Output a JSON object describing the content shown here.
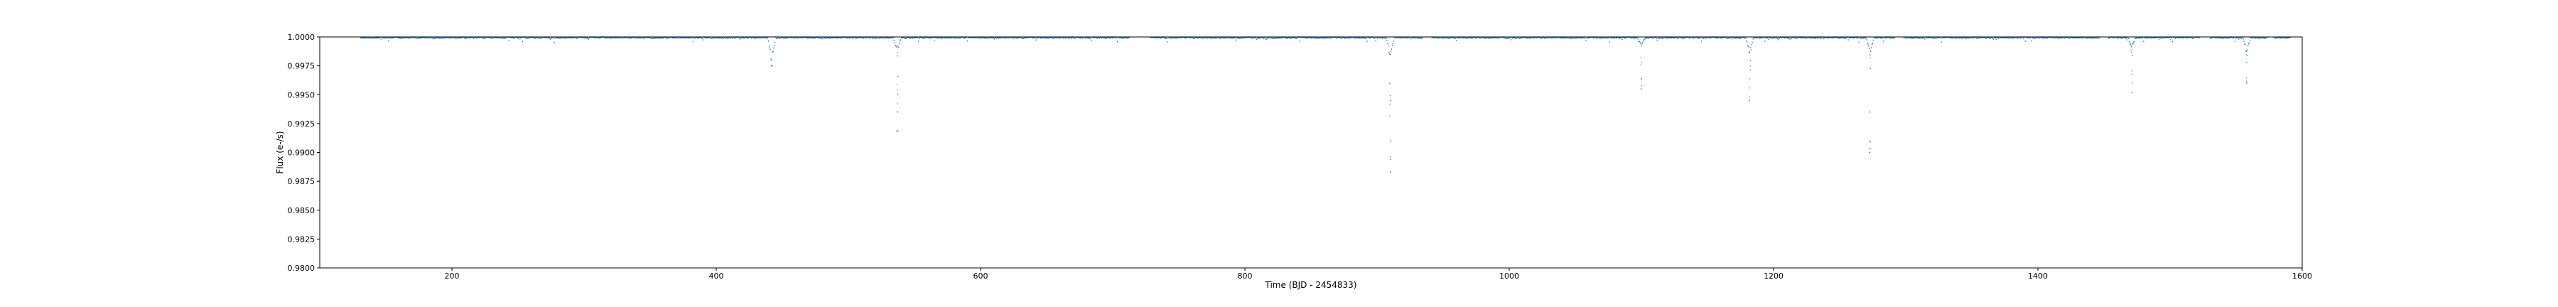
{
  "chart_data": {
    "type": "scatter",
    "title": "",
    "xlabel": "Time (BJD - 2454833)",
    "ylabel": "Flux (e-/s)",
    "xlim": [
      100,
      1600
    ],
    "ylim": [
      0.98,
      1.0
    ],
    "xticks": [
      "200",
      "400",
      "600",
      "800",
      "1000",
      "1200",
      "1400",
      "1600"
    ],
    "yticks": [
      "0.9800",
      "0.9825",
      "0.9850",
      "0.9875",
      "0.9900",
      "0.9925",
      "0.9950",
      "0.9975",
      "1.0000"
    ],
    "grid": false,
    "legend": "none",
    "series_color": "#1f77b4",
    "observation_range": [
      131,
      1591
    ],
    "data_gaps": [
      [
        713,
        728
      ],
      [
        935,
        941
      ],
      [
        1292,
        1298
      ],
      [
        1447,
        1453
      ],
      [
        1523,
        1530
      ],
      [
        1574,
        1578
      ]
    ],
    "dips": [
      {
        "x": 442,
        "depth_min": 0.9975,
        "deep_points": [
          0.9975
        ]
      },
      {
        "x": 537,
        "depth_min": 0.9985,
        "deep_points": [
          0.995,
          0.9935,
          0.9918
        ]
      },
      {
        "x": 910,
        "depth_min": 0.998,
        "deep_points": [
          0.9945,
          0.991,
          0.9883
        ]
      },
      {
        "x": 1100,
        "depth_min": 0.999,
        "deep_points": [
          0.9955
        ]
      },
      {
        "x": 1182,
        "depth_min": 0.9985,
        "deep_points": [
          0.9945
        ]
      },
      {
        "x": 1273,
        "depth_min": 0.9985,
        "deep_points": [
          0.9935,
          0.99
        ]
      },
      {
        "x": 1471,
        "depth_min": 0.999,
        "deep_points": [
          0.9952
        ]
      },
      {
        "x": 1558,
        "depth_min": 0.9985,
        "deep_points": [
          0.996
        ]
      }
    ]
  }
}
